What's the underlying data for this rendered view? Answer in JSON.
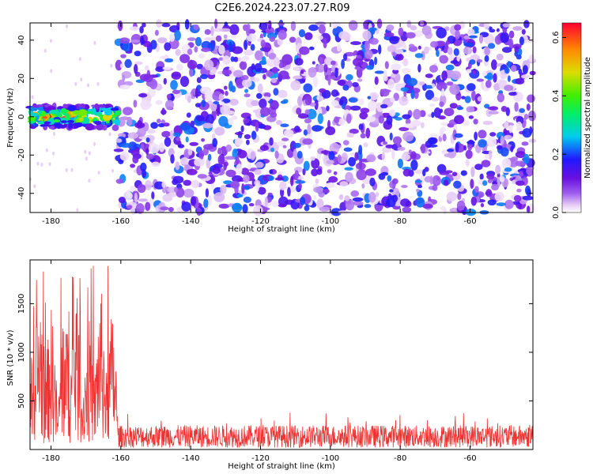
{
  "title": "C2E6.2024.223.07.27.R09",
  "chart_data": [
    {
      "type": "heatmap",
      "xlabel": "Height of straight line (km)",
      "ylabel": "Frequency (Hz)",
      "xlim": [
        -186,
        -42
      ],
      "ylim": [
        -50,
        49
      ],
      "x_ticks": [
        -180,
        -160,
        -140,
        -120,
        -100,
        -80,
        -60
      ],
      "y_ticks": [
        -40,
        -20,
        0,
        20,
        40
      ],
      "colorbar": {
        "label": "Normalized spectral amplitude",
        "range": [
          0,
          0.65
        ],
        "ticks": [
          0.0,
          0.2,
          0.4,
          0.6
        ]
      },
      "regions": [
        {
          "x_range": [
            -186,
            -161
          ],
          "description_value": "strong signal band near 0 Hz, width about ±8 Hz, amplitude up to 0.65"
        },
        {
          "x_range": [
            -161,
            -42
          ],
          "description_value": "noise-level amplitude 0.0–0.15 across all frequencies"
        }
      ]
    },
    {
      "type": "line",
      "xlabel": "Height of straight line (km)",
      "ylabel": "SNR (10 * v/v)",
      "xlim": [
        -186,
        -42
      ],
      "ylim": [
        0,
        1950
      ],
      "x_ticks": [
        -180,
        -160,
        -140,
        -120,
        -100,
        -80,
        -60
      ],
      "y_ticks": [
        500,
        1000,
        1500
      ],
      "color": "#ee3333",
      "segments": [
        {
          "x_range": [
            -186,
            -161
          ],
          "min": 50,
          "max": 1950,
          "typical": 700
        },
        {
          "x_range": [
            -161,
            -42
          ],
          "min": 20,
          "max": 380,
          "typical": 160
        }
      ]
    }
  ]
}
